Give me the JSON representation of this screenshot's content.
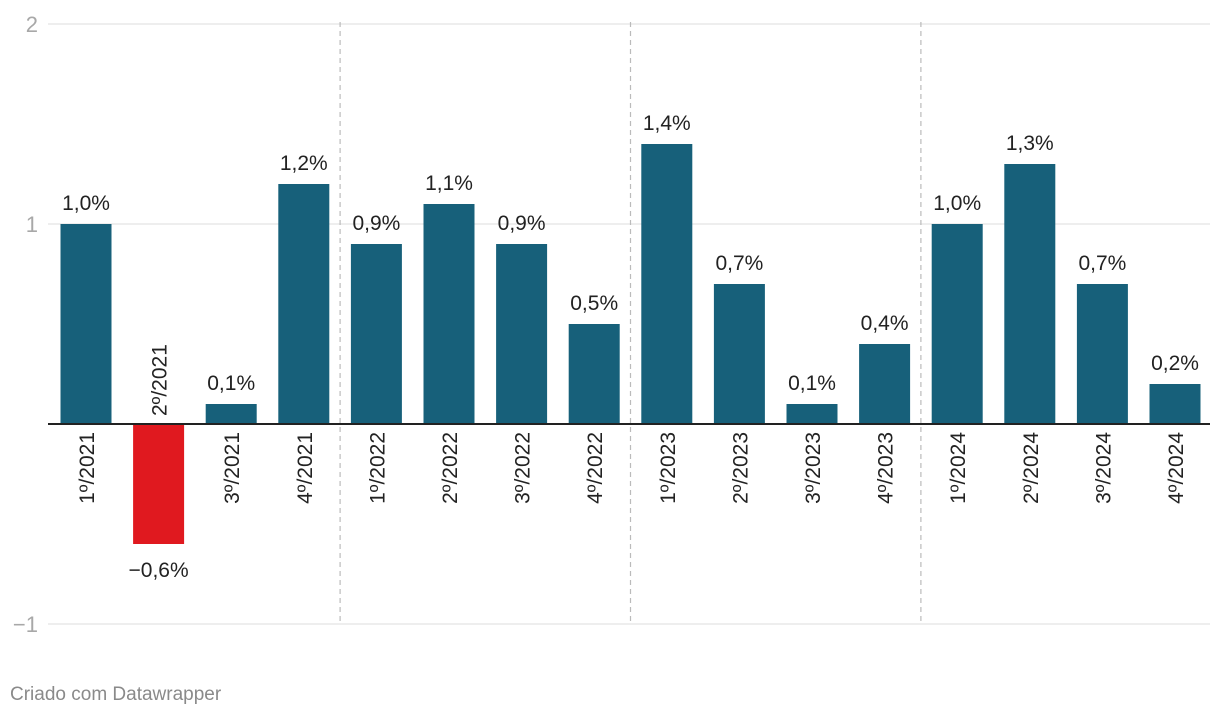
{
  "chart_data": {
    "type": "bar",
    "title": "",
    "xlabel": "",
    "ylabel": "",
    "ylim": [
      -1,
      2
    ],
    "yticks": [
      {
        "value": 2,
        "label": "2"
      },
      {
        "value": 1,
        "label": "1"
      },
      {
        "value": -1,
        "label": "−1"
      }
    ],
    "categories": [
      "1º/2021",
      "2º/2021",
      "3º/2021",
      "4º/2021",
      "1º/2022",
      "2º/2022",
      "3º/2022",
      "4º/2022",
      "1º/2023",
      "2º/2023",
      "3º/2023",
      "4º/2023",
      "1º/2024",
      "2º/2024",
      "3º/2024",
      "4º/2024"
    ],
    "values": [
      1.0,
      -0.6,
      0.1,
      1.2,
      0.9,
      1.1,
      0.9,
      0.5,
      1.4,
      0.7,
      0.1,
      0.4,
      1.0,
      1.3,
      0.7,
      0.2
    ],
    "value_labels": [
      "1,0%",
      "−0,6%",
      "0,1%",
      "1,2%",
      "0,9%",
      "1,1%",
      "0,9%",
      "0,5%",
      "1,4%",
      "0,7%",
      "0,1%",
      "0,4%",
      "1,0%",
      "1,3%",
      "0,7%",
      "0,2%"
    ],
    "year_separators_after": [
      3,
      7,
      11
    ],
    "colors": {
      "positive": "#17607a",
      "negative": "#e0191f",
      "grid": "#dddddd",
      "axis_text": "#a8a8a8",
      "label_text": "#222222",
      "baseline": "#222222",
      "separator": "#bbbbbb"
    }
  },
  "footer": {
    "credit": "Criado com Datawrapper"
  }
}
